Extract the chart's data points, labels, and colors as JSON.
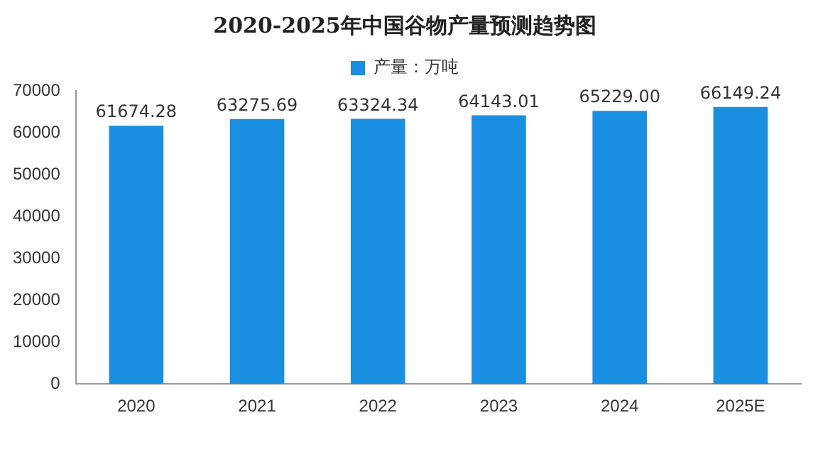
{
  "chart_data": {
    "type": "bar",
    "title": "2020-2025年中国谷物产量预测趋势图",
    "categories": [
      "2020",
      "2021",
      "2022",
      "2023",
      "2024",
      "2025E"
    ],
    "series": [
      {
        "name": "产量：万吨",
        "color": "#1a8ee0",
        "values": [
          61674.28,
          63275.69,
          63324.34,
          64143.01,
          65229.0,
          66149.24
        ]
      }
    ],
    "value_labels": [
      "61674.28",
      "63275.69",
      "63324.34",
      "64143.01",
      "65229.00",
      "66149.24"
    ],
    "ylim": [
      0,
      70000
    ],
    "yticks": [
      0,
      10000,
      20000,
      30000,
      40000,
      50000,
      60000,
      70000
    ],
    "grid": false,
    "legend": "top"
  }
}
